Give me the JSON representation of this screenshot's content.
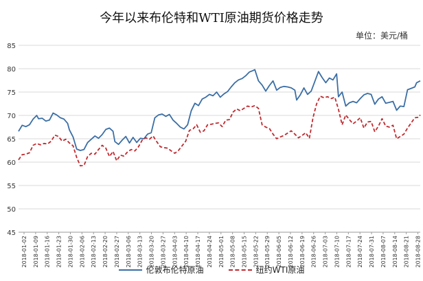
{
  "chart_data": {
    "type": "line",
    "title": "今年以来布伦特和WTI原油期货价格走势",
    "unit_label": "单位：美元/桶",
    "ylim": [
      45,
      85
    ],
    "y_ticks": [
      45,
      50,
      55,
      60,
      65,
      70,
      75,
      80,
      85
    ],
    "x_tick_labels": [
      "2018-01-02",
      "2018-01-09",
      "2018-01-16",
      "2018-01-23",
      "2018-01-30",
      "2018-02-06",
      "2018-02-13",
      "2018-02-20",
      "2018-02-27",
      "2018-03-06",
      "2018-03-13",
      "2018-03-20",
      "2018-03-27",
      "2018-04-03",
      "2018-04-10",
      "2018-04-17",
      "2018-04-24",
      "2018-05-01",
      "2018-05-08",
      "2018-05-15",
      "2018-05-22",
      "2018-05-29",
      "2018-06-05",
      "2018-06-12",
      "2018-06-19",
      "2018-06-26",
      "2018-07-03",
      "2018-07-10",
      "2018-07-17",
      "2018-07-24",
      "2018-07-31",
      "2018-08-07",
      "2018-08-14",
      "2018-08-21",
      "2018-08-28"
    ],
    "grid": "horizontal",
    "legend_position": "bottom",
    "series": [
      {
        "name": "伦敦布伦特原油",
        "color": "#3a6ea5",
        "style": "solid",
        "values": [
          [
            0,
            66.6
          ],
          [
            2,
            67.9
          ],
          [
            4,
            67.6
          ],
          [
            6,
            68.0
          ],
          [
            8,
            69.2
          ],
          [
            10,
            70.0
          ],
          [
            11,
            69.3
          ],
          [
            13,
            69.4
          ],
          [
            15,
            68.8
          ],
          [
            17,
            69.0
          ],
          [
            19,
            70.5
          ],
          [
            21,
            70.1
          ],
          [
            23,
            69.5
          ],
          [
            25,
            69.2
          ],
          [
            27,
            68.3
          ],
          [
            28,
            66.9
          ],
          [
            30,
            65.4
          ],
          [
            32,
            62.8
          ],
          [
            34,
            62.5
          ],
          [
            36,
            62.7
          ],
          [
            38,
            64.2
          ],
          [
            40,
            64.9
          ],
          [
            42,
            65.6
          ],
          [
            44,
            65.1
          ],
          [
            46,
            65.9
          ],
          [
            48,
            67.0
          ],
          [
            50,
            67.3
          ],
          [
            52,
            66.6
          ],
          [
            53,
            64.4
          ],
          [
            55,
            63.8
          ],
          [
            57,
            64.7
          ],
          [
            59,
            65.5
          ],
          [
            61,
            64.1
          ],
          [
            63,
            65.3
          ],
          [
            65,
            64.2
          ],
          [
            67,
            65.1
          ],
          [
            69,
            65.0
          ],
          [
            71,
            66.0
          ],
          [
            73,
            66.3
          ],
          [
            75,
            69.5
          ],
          [
            77,
            70.1
          ],
          [
            79,
            70.3
          ],
          [
            81,
            69.8
          ],
          [
            83,
            70.2
          ],
          [
            85,
            69.0
          ],
          [
            87,
            68.3
          ],
          [
            89,
            67.5
          ],
          [
            91,
            67.1
          ],
          [
            93,
            68.0
          ],
          [
            95,
            71.0
          ],
          [
            97,
            72.6
          ],
          [
            99,
            72.1
          ],
          [
            101,
            73.5
          ],
          [
            103,
            73.9
          ],
          [
            105,
            74.5
          ],
          [
            107,
            74.2
          ],
          [
            109,
            75.0
          ],
          [
            111,
            73.9
          ],
          [
            113,
            74.6
          ],
          [
            115,
            75.1
          ],
          [
            117,
            76.1
          ],
          [
            119,
            77.0
          ],
          [
            121,
            77.6
          ],
          [
            123,
            77.9
          ],
          [
            125,
            78.5
          ],
          [
            127,
            79.3
          ],
          [
            129,
            79.6
          ],
          [
            130,
            79.8
          ],
          [
            132,
            77.4
          ],
          [
            134,
            76.5
          ],
          [
            136,
            75.2
          ],
          [
            138,
            76.4
          ],
          [
            140,
            77.4
          ],
          [
            142,
            75.4
          ],
          [
            144,
            76.0
          ],
          [
            146,
            76.2
          ],
          [
            148,
            76.1
          ],
          [
            150,
            75.9
          ],
          [
            152,
            75.4
          ],
          [
            153,
            73.3
          ],
          [
            155,
            74.4
          ],
          [
            157,
            75.9
          ],
          [
            159,
            74.5
          ],
          [
            161,
            75.2
          ],
          [
            163,
            77.3
          ],
          [
            165,
            79.4
          ],
          [
            167,
            78.1
          ],
          [
            169,
            77.0
          ],
          [
            171,
            78.0
          ],
          [
            173,
            77.6
          ],
          [
            175,
            78.9
          ],
          [
            176,
            74.0
          ],
          [
            178,
            75.0
          ],
          [
            180,
            72.0
          ],
          [
            182,
            72.7
          ],
          [
            184,
            73.0
          ],
          [
            186,
            72.7
          ],
          [
            188,
            73.6
          ],
          [
            190,
            74.4
          ],
          [
            192,
            74.7
          ],
          [
            194,
            74.5
          ],
          [
            196,
            72.4
          ],
          [
            198,
            73.5
          ],
          [
            200,
            74.0
          ],
          [
            202,
            72.6
          ],
          [
            204,
            72.8
          ],
          [
            206,
            73.0
          ],
          [
            208,
            71.1
          ],
          [
            210,
            72.0
          ],
          [
            212,
            71.9
          ],
          [
            214,
            75.5
          ],
          [
            216,
            75.8
          ],
          [
            218,
            76.1
          ],
          [
            219,
            77.0
          ],
          [
            221,
            77.4
          ]
        ]
      },
      {
        "name": "纽约WTI原油",
        "color": "#c0282d",
        "style": "dashed",
        "values": [
          [
            0,
            60.5
          ],
          [
            2,
            61.6
          ],
          [
            4,
            61.7
          ],
          [
            6,
            62.0
          ],
          [
            8,
            63.6
          ],
          [
            10,
            64.0
          ],
          [
            12,
            63.7
          ],
          [
            14,
            64.0
          ],
          [
            16,
            63.9
          ],
          [
            18,
            64.5
          ],
          [
            20,
            65.8
          ],
          [
            22,
            65.5
          ],
          [
            24,
            64.5
          ],
          [
            26,
            64.9
          ],
          [
            28,
            64.1
          ],
          [
            30,
            63.5
          ],
          [
            32,
            61.0
          ],
          [
            34,
            59.2
          ],
          [
            36,
            59.3
          ],
          [
            38,
            61.2
          ],
          [
            40,
            61.9
          ],
          [
            42,
            61.7
          ],
          [
            44,
            62.7
          ],
          [
            46,
            63.6
          ],
          [
            48,
            63.0
          ],
          [
            50,
            61.2
          ],
          [
            52,
            62.3
          ],
          [
            54,
            60.3
          ],
          [
            56,
            61.5
          ],
          [
            58,
            61.3
          ],
          [
            60,
            62.2
          ],
          [
            62,
            62.7
          ],
          [
            64,
            62.4
          ],
          [
            66,
            63.3
          ],
          [
            68,
            64.7
          ],
          [
            70,
            65.2
          ],
          [
            72,
            64.9
          ],
          [
            74,
            65.6
          ],
          [
            76,
            64.4
          ],
          [
            78,
            63.3
          ],
          [
            80,
            63.1
          ],
          [
            82,
            63.0
          ],
          [
            84,
            62.4
          ],
          [
            86,
            61.9
          ],
          [
            88,
            62.5
          ],
          [
            90,
            63.5
          ],
          [
            92,
            64.5
          ],
          [
            94,
            66.8
          ],
          [
            96,
            67.1
          ],
          [
            98,
            68.0
          ],
          [
            100,
            66.4
          ],
          [
            102,
            66.7
          ],
          [
            104,
            68.0
          ],
          [
            106,
            68.1
          ],
          [
            108,
            68.3
          ],
          [
            110,
            68.4
          ],
          [
            112,
            67.6
          ],
          [
            114,
            69.0
          ],
          [
            116,
            69.1
          ],
          [
            118,
            70.7
          ],
          [
            120,
            71.4
          ],
          [
            122,
            71.0
          ],
          [
            124,
            71.5
          ],
          [
            126,
            72.0
          ],
          [
            128,
            71.8
          ],
          [
            130,
            72.1
          ],
          [
            132,
            71.5
          ],
          [
            134,
            68.0
          ],
          [
            136,
            67.5
          ],
          [
            138,
            67.2
          ],
          [
            140,
            66.0
          ],
          [
            142,
            65.0
          ],
          [
            144,
            65.4
          ],
          [
            146,
            65.7
          ],
          [
            148,
            66.2
          ],
          [
            150,
            66.7
          ],
          [
            152,
            66.0
          ],
          [
            154,
            65.2
          ],
          [
            156,
            65.7
          ],
          [
            158,
            66.3
          ],
          [
            160,
            65.1
          ],
          [
            162,
            69.5
          ],
          [
            164,
            72.5
          ],
          [
            166,
            74.1
          ],
          [
            168,
            73.8
          ],
          [
            170,
            74.0
          ],
          [
            172,
            73.6
          ],
          [
            174,
            73.9
          ],
          [
            176,
            71.3
          ],
          [
            178,
            68.0
          ],
          [
            180,
            70.1
          ],
          [
            182,
            69.1
          ],
          [
            184,
            68.2
          ],
          [
            186,
            68.8
          ],
          [
            188,
            69.5
          ],
          [
            190,
            67.3
          ],
          [
            192,
            68.6
          ],
          [
            194,
            68.7
          ],
          [
            196,
            66.5
          ],
          [
            198,
            67.7
          ],
          [
            200,
            69.3
          ],
          [
            202,
            67.7
          ],
          [
            204,
            67.5
          ],
          [
            206,
            67.9
          ],
          [
            208,
            65.0
          ],
          [
            210,
            65.5
          ],
          [
            212,
            66.0
          ],
          [
            214,
            67.3
          ],
          [
            216,
            68.4
          ],
          [
            218,
            69.5
          ],
          [
            220,
            69.6
          ],
          [
            221,
            70.1
          ]
        ]
      }
    ]
  }
}
